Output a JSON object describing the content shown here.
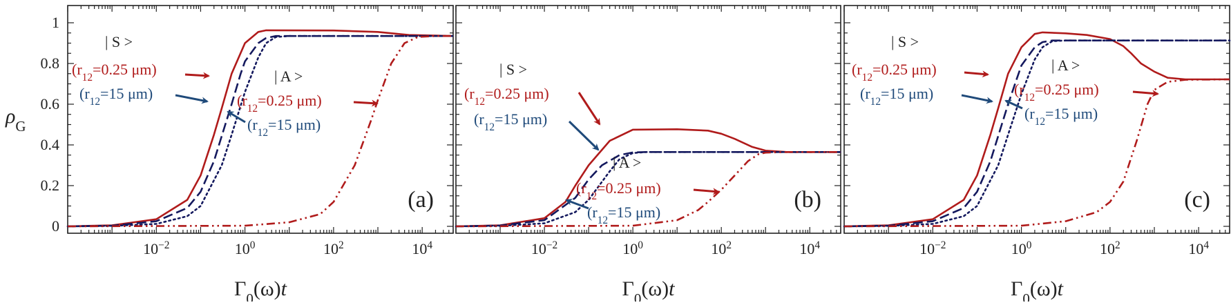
{
  "colors": {
    "red": "#b01b1b",
    "navy": "#14195e",
    "blue": "#1f4a7a",
    "axis": "#222222"
  },
  "chart_data": [
    {
      "type": "line",
      "panel_label": "(a)",
      "xlabel": "Γ0(ω)t",
      "ylabel": "ρG",
      "x_scale": "log",
      "xlim": [
        0.0001,
        50000
      ],
      "ylim": [
        0,
        1
      ],
      "xticks": [
        "10−2",
        "100",
        "102",
        "104"
      ],
      "yticks": [
        "0",
        "0.2",
        "0.4",
        "0.6",
        "0.8",
        "1"
      ],
      "series": [
        {
          "name": "|S> (r12=0.25 μm)",
          "color": "#b01b1b",
          "dash": "solid",
          "points": [
            [
              0.0001,
              0.0
            ],
            [
              0.001,
              0.005
            ],
            [
              0.01,
              0.035
            ],
            [
              0.05,
              0.13
            ],
            [
              0.1,
              0.25
            ],
            [
              0.2,
              0.45
            ],
            [
              0.3,
              0.58
            ],
            [
              0.5,
              0.75
            ],
            [
              1,
              0.9
            ],
            [
              2,
              0.955
            ],
            [
              3,
              0.963
            ],
            [
              100,
              0.962
            ],
            [
              1000,
              0.955
            ],
            [
              5000,
              0.94
            ],
            [
              50000,
              0.935
            ]
          ]
        },
        {
          "name": "|S> (r12=15 μm)",
          "color": "#14195e",
          "dash": "long",
          "points": [
            [
              0.0001,
              0.0
            ],
            [
              0.001,
              0.003
            ],
            [
              0.01,
              0.025
            ],
            [
              0.05,
              0.09
            ],
            [
              0.1,
              0.17
            ],
            [
              0.2,
              0.32
            ],
            [
              0.5,
              0.6
            ],
            [
              0.8,
              0.75
            ],
            [
              1,
              0.81
            ],
            [
              2,
              0.9
            ],
            [
              3,
              0.925
            ],
            [
              5,
              0.935
            ],
            [
              50000,
              0.935
            ]
          ]
        },
        {
          "name": "|A> (r12=15 μm)",
          "color": "#14195e",
          "dash": "dot",
          "points": [
            [
              0.0001,
              0.0
            ],
            [
              0.001,
              0.002
            ],
            [
              0.01,
              0.012
            ],
            [
              0.05,
              0.05
            ],
            [
              0.1,
              0.1
            ],
            [
              0.3,
              0.3
            ],
            [
              0.5,
              0.45
            ],
            [
              1,
              0.66
            ],
            [
              2,
              0.83
            ],
            [
              3,
              0.9
            ],
            [
              5,
              0.93
            ],
            [
              10,
              0.935
            ],
            [
              50000,
              0.935
            ]
          ]
        },
        {
          "name": "|A> (r12=0.25 μm)",
          "color": "#b01b1b",
          "dash": "dashdotdot",
          "points": [
            [
              0.0001,
              0.0
            ],
            [
              1,
              0.003
            ],
            [
              10,
              0.02
            ],
            [
              50,
              0.06
            ],
            [
              100,
              0.12
            ],
            [
              300,
              0.3
            ],
            [
              700,
              0.52
            ],
            [
              1000,
              0.62
            ],
            [
              2000,
              0.8
            ],
            [
              4000,
              0.9
            ],
            [
              8000,
              0.93
            ],
            [
              20000,
              0.935
            ],
            [
              50000,
              0.935
            ]
          ]
        }
      ],
      "annotations": [
        {
          "text": "| S >",
          "color": "#222222"
        },
        {
          "text": "(r12=0.25 μm)",
          "color": "#b01b1b"
        },
        {
          "text": "(r12=15 μm)",
          "color": "#1f4a7a"
        },
        {
          "text": "| A >",
          "color": "#222222"
        },
        {
          "text": "(r12=0.25 μm)",
          "color": "#b01b1b"
        },
        {
          "text": "(r12=15 μm)",
          "color": "#1f4a7a"
        }
      ]
    },
    {
      "type": "line",
      "panel_label": "(b)",
      "xlabel": "Γ0(ω)t",
      "x_scale": "log",
      "xlim": [
        0.0001,
        50000
      ],
      "ylim": [
        0,
        1
      ],
      "xticks": [
        "10−2",
        "100",
        "102",
        "104"
      ],
      "series": [
        {
          "name": "|S> (r12=0.25 μm)",
          "color": "#b01b1b",
          "dash": "solid",
          "points": [
            [
              0.0001,
              0.0
            ],
            [
              0.001,
              0.005
            ],
            [
              0.01,
              0.04
            ],
            [
              0.03,
              0.12
            ],
            [
              0.05,
              0.2
            ],
            [
              0.1,
              0.3
            ],
            [
              0.3,
              0.42
            ],
            [
              1,
              0.475
            ],
            [
              10,
              0.477
            ],
            [
              50,
              0.47
            ],
            [
              100,
              0.455
            ],
            [
              200,
              0.43
            ],
            [
              500,
              0.39
            ],
            [
              1000,
              0.372
            ],
            [
              3000,
              0.365
            ],
            [
              50000,
              0.365
            ]
          ]
        },
        {
          "name": "|S> (r12=15 μm)",
          "color": "#14195e",
          "dash": "long",
          "points": [
            [
              0.0001,
              0.0
            ],
            [
              0.001,
              0.004
            ],
            [
              0.01,
              0.03
            ],
            [
              0.05,
              0.14
            ],
            [
              0.1,
              0.23
            ],
            [
              0.2,
              0.3
            ],
            [
              0.5,
              0.35
            ],
            [
              1,
              0.363
            ],
            [
              2,
              0.365
            ],
            [
              50000,
              0.365
            ]
          ]
        },
        {
          "name": "|A> (r12=15 μm)",
          "color": "#14195e",
          "dash": "dot",
          "points": [
            [
              0.0001,
              0.0
            ],
            [
              0.001,
              0.002
            ],
            [
              0.01,
              0.015
            ],
            [
              0.05,
              0.07
            ],
            [
              0.1,
              0.13
            ],
            [
              0.3,
              0.27
            ],
            [
              0.5,
              0.33
            ],
            [
              1,
              0.36
            ],
            [
              2,
              0.365
            ],
            [
              50000,
              0.365
            ]
          ]
        },
        {
          "name": "|A> (r12=0.25 μm)",
          "color": "#b01b1b",
          "dash": "dashdotdot",
          "points": [
            [
              0.0001,
              0.0
            ],
            [
              1,
              0.003
            ],
            [
              10,
              0.03
            ],
            [
              30,
              0.08
            ],
            [
              50,
              0.12
            ],
            [
              100,
              0.18
            ],
            [
              200,
              0.25
            ],
            [
              400,
              0.32
            ],
            [
              700,
              0.355
            ],
            [
              1000,
              0.362
            ],
            [
              3000,
              0.365
            ],
            [
              50000,
              0.365
            ]
          ]
        }
      ],
      "annotations": [
        {
          "text": "| S >",
          "color": "#222222"
        },
        {
          "text": "(r12=0.25 μm)",
          "color": "#b01b1b"
        },
        {
          "text": "(r12=15 μm)",
          "color": "#1f4a7a"
        },
        {
          "text": "| A >",
          "color": "#222222"
        },
        {
          "text": "(r12=0.25 μm)",
          "color": "#b01b1b"
        },
        {
          "text": "(r12=15 μm)",
          "color": "#1f4a7a"
        }
      ]
    },
    {
      "type": "line",
      "panel_label": "(c)",
      "xlabel": "Γ0(ω)t",
      "x_scale": "log",
      "xlim": [
        0.0001,
        50000
      ],
      "ylim": [
        0,
        1
      ],
      "xticks": [
        "10−2",
        "100",
        "102",
        "104"
      ],
      "series": [
        {
          "name": "|S> (r12=0.25 μm)",
          "color": "#b01b1b",
          "dash": "solid",
          "points": [
            [
              0.0001,
              0.0
            ],
            [
              0.001,
              0.005
            ],
            [
              0.01,
              0.035
            ],
            [
              0.05,
              0.13
            ],
            [
              0.1,
              0.25
            ],
            [
              0.2,
              0.45
            ],
            [
              0.3,
              0.58
            ],
            [
              0.5,
              0.75
            ],
            [
              1,
              0.88
            ],
            [
              2,
              0.945
            ],
            [
              3,
              0.953
            ],
            [
              10,
              0.948
            ],
            [
              30,
              0.94
            ],
            [
              100,
              0.92
            ],
            [
              200,
              0.885
            ],
            [
              300,
              0.85
            ],
            [
              500,
              0.8
            ],
            [
              1000,
              0.76
            ],
            [
              2000,
              0.73
            ],
            [
              5000,
              0.722
            ],
            [
              50000,
              0.722
            ]
          ]
        },
        {
          "name": "|S> (r12=15 μm)",
          "color": "#14195e",
          "dash": "long",
          "points": [
            [
              0.0001,
              0.0
            ],
            [
              0.001,
              0.003
            ],
            [
              0.01,
              0.025
            ],
            [
              0.05,
              0.09
            ],
            [
              0.1,
              0.17
            ],
            [
              0.2,
              0.32
            ],
            [
              0.5,
              0.6
            ],
            [
              0.8,
              0.73
            ],
            [
              1,
              0.79
            ],
            [
              2,
              0.88
            ],
            [
              3,
              0.905
            ],
            [
              5,
              0.913
            ],
            [
              50000,
              0.913
            ]
          ]
        },
        {
          "name": "|A> (r12=15 μm)",
          "color": "#14195e",
          "dash": "dot",
          "points": [
            [
              0.0001,
              0.0
            ],
            [
              0.001,
              0.002
            ],
            [
              0.01,
              0.012
            ],
            [
              0.05,
              0.05
            ],
            [
              0.1,
              0.1
            ],
            [
              0.3,
              0.3
            ],
            [
              0.5,
              0.45
            ],
            [
              1,
              0.65
            ],
            [
              2,
              0.82
            ],
            [
              3,
              0.88
            ],
            [
              5,
              0.91
            ],
            [
              10,
              0.913
            ],
            [
              50000,
              0.913
            ]
          ]
        },
        {
          "name": "|A> (r12=0.25 μm)",
          "color": "#b01b1b",
          "dash": "dashdotdot",
          "points": [
            [
              0.0001,
              0.0
            ],
            [
              1,
              0.003
            ],
            [
              10,
              0.025
            ],
            [
              50,
              0.07
            ],
            [
              100,
              0.12
            ],
            [
              200,
              0.22
            ],
            [
              400,
              0.42
            ],
            [
              700,
              0.6
            ],
            [
              1000,
              0.67
            ],
            [
              2000,
              0.71
            ],
            [
              5000,
              0.72
            ],
            [
              50000,
              0.722
            ]
          ]
        }
      ],
      "annotations": [
        {
          "text": "| S >",
          "color": "#222222"
        },
        {
          "text": "(r12=0.25 μm)",
          "color": "#b01b1b"
        },
        {
          "text": "(r12=15 μm)",
          "color": "#1f4a7a"
        },
        {
          "text": "| A >",
          "color": "#222222"
        },
        {
          "text": "(r12=0.25 μm)",
          "color": "#b01b1b"
        },
        {
          "text": "(r12=15 μm)",
          "color": "#1f4a7a"
        }
      ]
    }
  ]
}
